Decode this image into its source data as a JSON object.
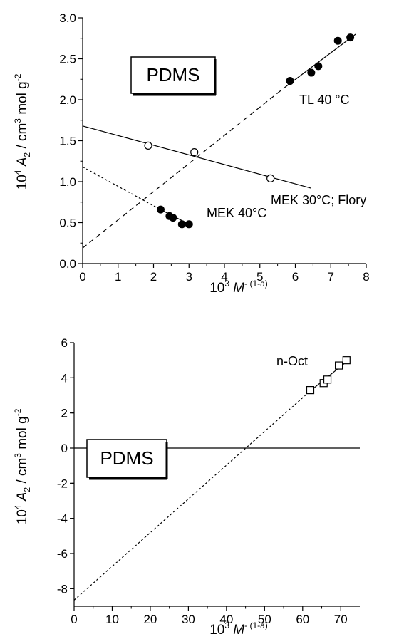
{
  "chart_data": [
    {
      "type": "scatter",
      "xlim": [
        0,
        8
      ],
      "ylim": [
        0,
        3
      ],
      "x_ticks": [
        "0",
        "1",
        "2",
        "3",
        "4",
        "5",
        "6",
        "7",
        "8"
      ],
      "y_ticks": [
        "0.0",
        "0.5",
        "1.0",
        "1.5",
        "2.0",
        "2.5",
        "3.0"
      ],
      "xlabel": {
        "prefix": "10",
        "exp": "3",
        "var": "M",
        "sup": "- (1-a)"
      },
      "ylabel": {
        "prefix": "10",
        "exp": "4",
        "var": "A",
        "sub": "2",
        "unit": " / cm",
        "unit_exp": "3",
        "unit_rest": " mol g",
        "unit_exp2": "-2"
      },
      "box_label": "PDMS",
      "series": [
        {
          "name": "TL 40 °C",
          "marker": "filled-circle",
          "points": [
            [
              5.85,
              2.23
            ],
            [
              6.45,
              2.33
            ],
            [
              6.65,
              2.41
            ],
            [
              7.2,
              2.72
            ],
            [
              7.55,
              2.76
            ]
          ],
          "fit_solid": [
            [
              5.7,
              2.15
            ],
            [
              7.7,
              2.8
            ]
          ],
          "fit_dashed": [
            [
              0,
              0.19
            ],
            [
              5.7,
              2.15
            ]
          ]
        },
        {
          "name": "MEK 30°C; Flory",
          "marker": "open-circle",
          "points": [
            [
              1.85,
              1.44
            ],
            [
              3.15,
              1.36
            ],
            [
              5.3,
              1.04
            ]
          ],
          "fit_solid": [
            [
              0,
              1.68
            ],
            [
              6.45,
              0.92
            ]
          ]
        },
        {
          "name": "MEK 40°C",
          "marker": "filled-circle",
          "points": [
            [
              2.2,
              0.66
            ],
            [
              2.45,
              0.58
            ],
            [
              2.55,
              0.56
            ],
            [
              2.8,
              0.48
            ],
            [
              3.0,
              0.48
            ]
          ],
          "fit_solid": [
            [
              2.15,
              0.67
            ],
            [
              3.05,
              0.47
            ]
          ],
          "fit_dotted": [
            [
              0,
              1.18
            ],
            [
              2.15,
              0.67
            ]
          ]
        }
      ]
    },
    {
      "type": "scatter",
      "xlim": [
        0,
        75
      ],
      "ylim": [
        -9,
        6
      ],
      "x_ticks": [
        "0",
        "10",
        "20",
        "30",
        "40",
        "50",
        "60",
        "70"
      ],
      "y_ticks": [
        "6",
        "4",
        "2",
        "0",
        "-2",
        "-4",
        "-6",
        "-8"
      ],
      "xlabel": {
        "prefix": "10",
        "exp": "3",
        "var": "M",
        "sup": "- (1-a)"
      },
      "ylabel": {
        "prefix": "10",
        "exp": "4",
        "var": "A",
        "sub": "2",
        "unit": " / cm",
        "unit_exp": "3",
        "unit_rest": " mol g",
        "unit_exp2": "-2"
      },
      "box_label": "PDMS",
      "series": [
        {
          "name": "n-Oct",
          "marker": "open-square",
          "points": [
            [
              62,
              3.3
            ],
            [
              65.5,
              3.7
            ],
            [
              66.5,
              3.9
            ],
            [
              69.5,
              4.7
            ],
            [
              71.5,
              5.0
            ]
          ],
          "fit_solid": [
            [
              62,
              3.25
            ],
            [
              72,
              5.0
            ]
          ],
          "fit_dotted": [
            [
              0,
              -8.65
            ],
            [
              62,
              3.25
            ]
          ]
        }
      ],
      "reference_line_y": 0
    }
  ]
}
